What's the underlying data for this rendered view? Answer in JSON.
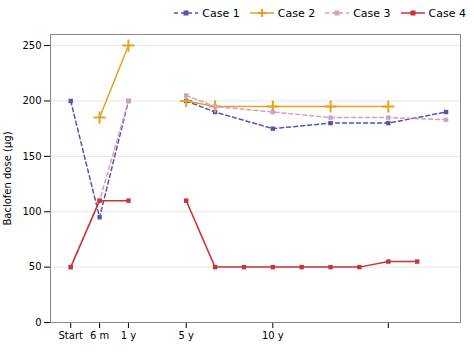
{
  "chart_data": {
    "type": "line",
    "ylabel": "Baclofen dose (μg)",
    "xlim": [
      0.3,
      14.5
    ],
    "xticks": [
      {
        "value": 1,
        "label": "Start"
      },
      {
        "value": 2,
        "label": "6 m"
      },
      {
        "value": 3,
        "label": "1 y"
      },
      {
        "value": 5,
        "label": "5 y"
      },
      {
        "value": 8,
        "label": "10 y"
      },
      {
        "value": 12,
        "label": null
      }
    ],
    "ylim": [
      0,
      260
    ],
    "yticks": [
      0,
      50,
      100,
      150,
      200,
      250
    ],
    "grid": "y",
    "legend": "upper right",
    "series": [
      {
        "name": "Case 1",
        "color": "#5555aa",
        "line_style": "dashed",
        "marker": "square",
        "x": [
          1,
          2,
          3,
          null,
          5,
          6,
          8,
          10,
          12,
          14
        ],
        "values": [
          200,
          95,
          200,
          null,
          200,
          190,
          175,
          180,
          180,
          190
        ]
      },
      {
        "name": "Case 2",
        "color": "#e8a020",
        "line_style": "solid",
        "marker": "plus",
        "x": [
          2,
          3,
          null,
          5,
          6,
          8,
          10,
          12
        ],
        "values": [
          185,
          250,
          null,
          200,
          195,
          195,
          195,
          195
        ]
      },
      {
        "name": "Case 3",
        "color": "#d4a0c0",
        "line_style": "dashed",
        "marker": "square",
        "x": [
          1,
          2,
          3,
          null,
          5,
          6,
          8,
          10,
          12,
          14
        ],
        "values": [
          50,
          110,
          200,
          null,
          205,
          195,
          190,
          185,
          185,
          183
        ]
      },
      {
        "name": "Case 4",
        "color": "#cc3333",
        "line_style": "solid",
        "marker": "square",
        "x": [
          1,
          2,
          3,
          null,
          5,
          6,
          7,
          8,
          9,
          10,
          11,
          12,
          13
        ],
        "values": [
          50,
          110,
          110,
          null,
          110,
          50,
          50,
          50,
          50,
          50,
          50,
          55,
          55
        ]
      }
    ]
  }
}
